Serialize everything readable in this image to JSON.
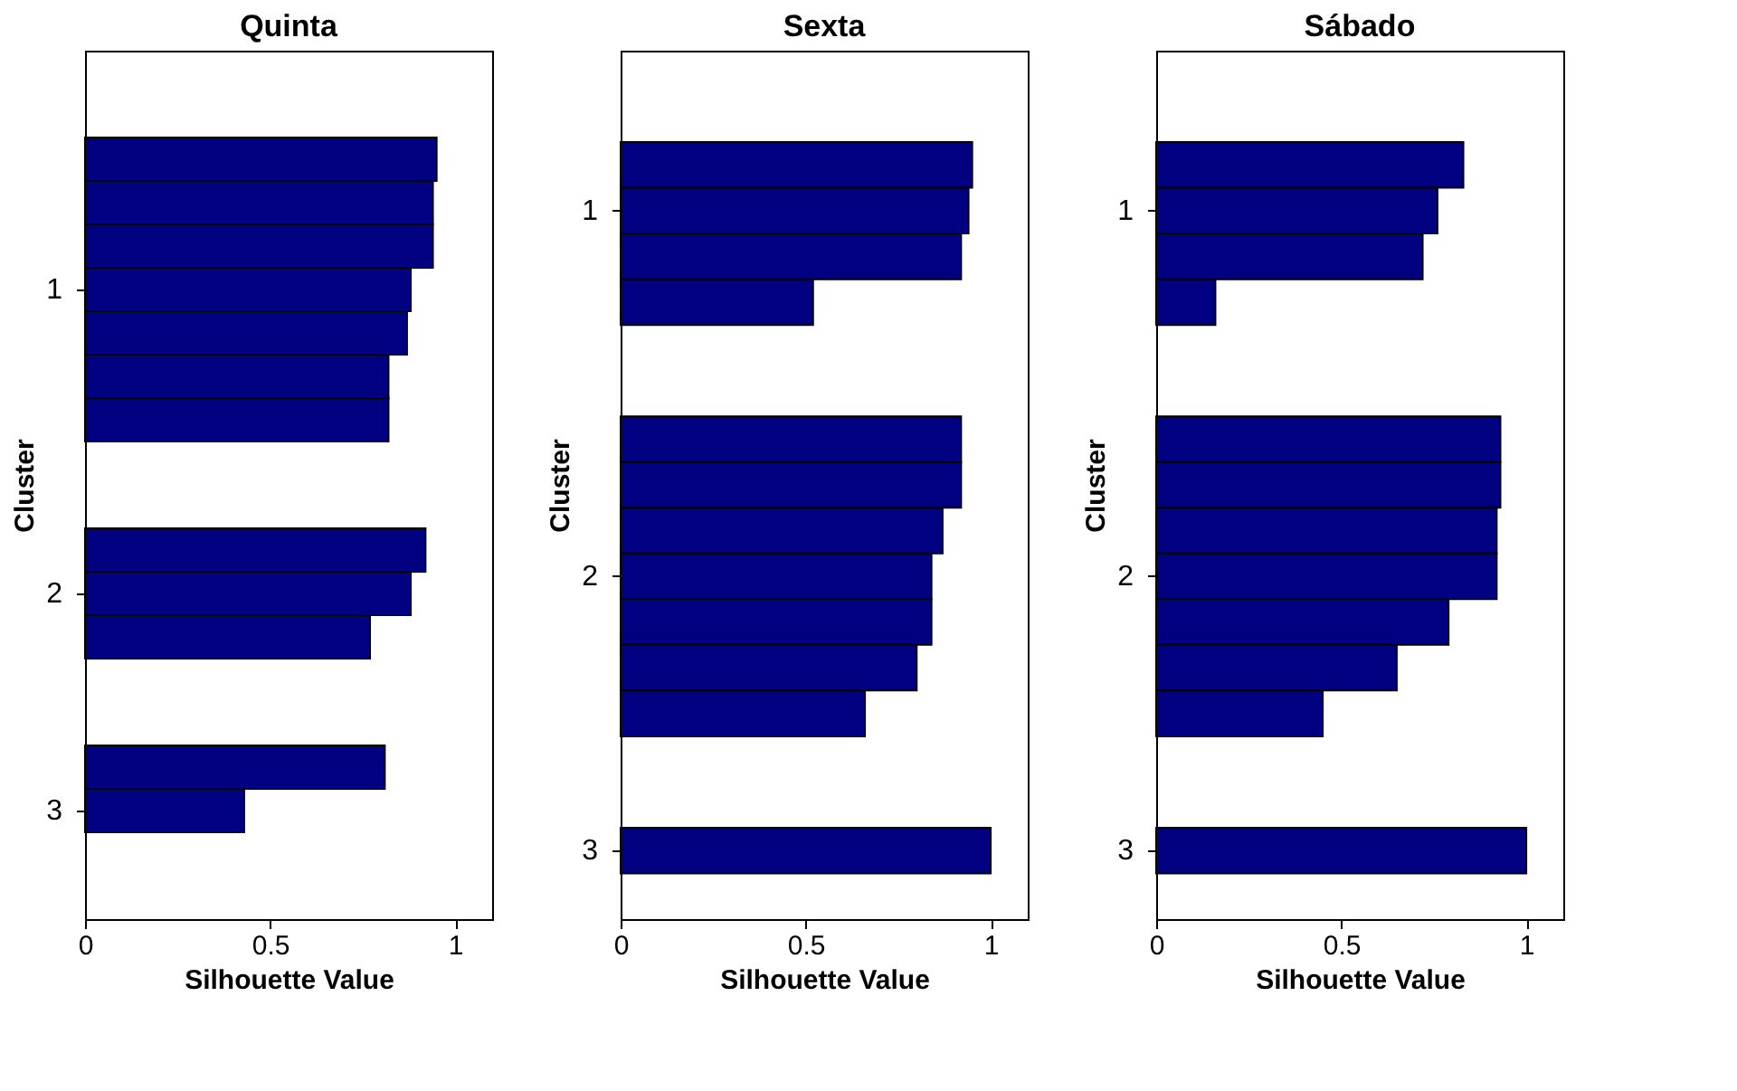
{
  "chart_data": [
    {
      "type": "bar",
      "orientation": "horizontal",
      "title": "Quinta",
      "xlabel": "Silhouette Value",
      "ylabel": "Cluster",
      "color": "#000080",
      "grid": false,
      "xlim": [
        0,
        1.1
      ],
      "xticks": [
        0,
        0.5,
        1
      ],
      "categories": [
        null,
        null,
        null,
        null,
        null,
        "1",
        null,
        null,
        null,
        null,
        null,
        null,
        "2",
        null,
        null,
        null,
        null,
        "3",
        null,
        null
      ],
      "values": [
        null,
        null,
        0.95,
        0.94,
        0.94,
        0.88,
        0.87,
        0.82,
        0.82,
        null,
        null,
        0.92,
        0.88,
        0.77,
        null,
        null,
        0.81,
        0.43,
        null,
        null
      ]
    },
    {
      "type": "bar",
      "orientation": "horizontal",
      "title": "Sexta",
      "xlabel": "Silhouette Value",
      "ylabel": "Cluster",
      "color": "#000080",
      "grid": false,
      "xlim": [
        0,
        1.1
      ],
      "xticks": [
        0,
        0.5,
        1
      ],
      "categories": [
        null,
        null,
        null,
        "1",
        null,
        null,
        null,
        null,
        null,
        null,
        null,
        "2",
        null,
        null,
        null,
        null,
        null,
        "3",
        null
      ],
      "values": [
        null,
        null,
        0.95,
        0.94,
        0.92,
        0.52,
        null,
        null,
        0.92,
        0.92,
        0.87,
        0.84,
        0.84,
        0.8,
        0.66,
        null,
        null,
        1.0,
        null
      ]
    },
    {
      "type": "bar",
      "orientation": "horizontal",
      "title": "Sábado",
      "xlabel": "Silhouette Value",
      "ylabel": "Cluster",
      "color": "#000080",
      "grid": false,
      "xlim": [
        0,
        1.1
      ],
      "xticks": [
        0,
        0.5,
        1
      ],
      "categories": [
        null,
        null,
        null,
        "1",
        null,
        null,
        null,
        null,
        null,
        null,
        null,
        "2",
        null,
        null,
        null,
        null,
        null,
        "3",
        null
      ],
      "values": [
        null,
        null,
        0.83,
        0.76,
        0.72,
        0.16,
        null,
        null,
        0.93,
        0.93,
        0.92,
        0.92,
        0.79,
        0.65,
        0.45,
        null,
        null,
        1.0,
        null
      ]
    }
  ]
}
